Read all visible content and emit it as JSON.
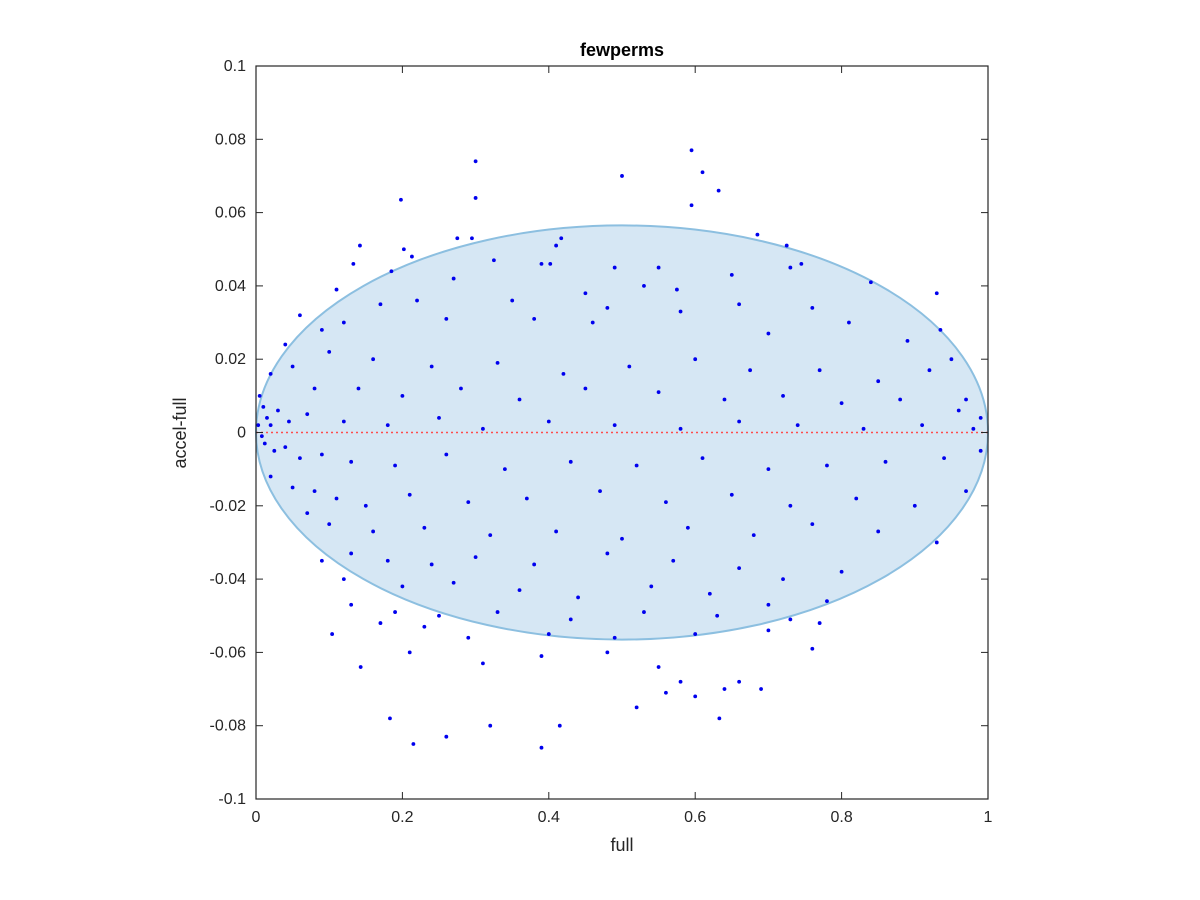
{
  "chart_data": {
    "type": "scatter",
    "title": "fewperms",
    "xlabel": "full",
    "ylabel": "accel-full",
    "xlim": [
      0,
      1
    ],
    "ylim": [
      -0.1,
      0.1
    ],
    "xticks": [
      0,
      0.2,
      0.4,
      0.6,
      0.8,
      1
    ],
    "xtick_labels": [
      "0",
      "0.2",
      "0.4",
      "0.6",
      "0.8",
      "1"
    ],
    "yticks": [
      -0.1,
      -0.08,
      -0.06,
      -0.04,
      -0.02,
      0,
      0.02,
      0.04,
      0.06,
      0.08,
      0.1
    ],
    "ytick_labels": [
      "-0.1",
      "-0.08",
      "-0.06",
      "-0.04",
      "-0.02",
      "0",
      "0.02",
      "0.04",
      "0.06",
      "0.08",
      "0.1"
    ],
    "grid": false,
    "colors": {
      "points": "#0000ee",
      "ellipse_fill": "#d6e7f4",
      "ellipse_stroke": "#8cbfe0",
      "zero_line": "#ff4d4d",
      "axes": "#262626"
    },
    "ellipse": {
      "center": [
        0.5,
        0
      ],
      "semi_axis_x": 0.5,
      "semi_axis_y": 0.0565
    },
    "reference_line": {
      "y": 0,
      "x_range": [
        0,
        1
      ],
      "style": "dotted"
    },
    "series": [
      {
        "values": [
          [
            0.3,
            0.074
          ],
          [
            0.595,
            0.077
          ],
          [
            0.61,
            0.071
          ],
          [
            0.5,
            0.07
          ],
          [
            0.632,
            0.066
          ],
          [
            0.198,
            0.0635
          ],
          [
            0.3,
            0.064
          ],
          [
            0.595,
            0.062
          ],
          [
            0.142,
            0.051
          ],
          [
            0.202,
            0.05
          ],
          [
            0.275,
            0.053
          ],
          [
            0.295,
            0.053
          ],
          [
            0.41,
            0.051
          ],
          [
            0.417,
            0.053
          ],
          [
            0.685,
            0.054
          ],
          [
            0.725,
            0.051
          ],
          [
            0.133,
            0.046
          ],
          [
            0.185,
            0.044
          ],
          [
            0.213,
            0.048
          ],
          [
            0.325,
            0.047
          ],
          [
            0.39,
            0.046
          ],
          [
            0.402,
            0.046
          ],
          [
            0.49,
            0.045
          ],
          [
            0.55,
            0.045
          ],
          [
            0.73,
            0.045
          ],
          [
            0.84,
            0.041
          ],
          [
            0.93,
            0.038
          ],
          [
            0.11,
            0.039
          ],
          [
            0.27,
            0.042
          ],
          [
            0.53,
            0.04
          ],
          [
            0.575,
            0.039
          ],
          [
            0.65,
            0.043
          ],
          [
            0.745,
            0.046
          ],
          [
            0.45,
            0.038
          ],
          [
            0.17,
            0.035
          ],
          [
            0.22,
            0.036
          ],
          [
            0.35,
            0.036
          ],
          [
            0.48,
            0.034
          ],
          [
            0.66,
            0.035
          ],
          [
            0.76,
            0.034
          ],
          [
            0.935,
            0.028
          ],
          [
            0.06,
            0.032
          ],
          [
            0.09,
            0.028
          ],
          [
            0.12,
            0.03
          ],
          [
            0.26,
            0.031
          ],
          [
            0.38,
            0.031
          ],
          [
            0.46,
            0.03
          ],
          [
            0.58,
            0.033
          ],
          [
            0.7,
            0.027
          ],
          [
            0.81,
            0.03
          ],
          [
            0.89,
            0.025
          ],
          [
            0.95,
            0.02
          ],
          [
            0.04,
            0.024
          ],
          [
            0.1,
            0.022
          ],
          [
            0.16,
            0.02
          ],
          [
            0.24,
            0.018
          ],
          [
            0.33,
            0.019
          ],
          [
            0.42,
            0.016
          ],
          [
            0.51,
            0.018
          ],
          [
            0.6,
            0.02
          ],
          [
            0.675,
            0.017
          ],
          [
            0.77,
            0.017
          ],
          [
            0.85,
            0.014
          ],
          [
            0.92,
            0.017
          ],
          [
            0.97,
            0.009
          ],
          [
            0.02,
            0.016
          ],
          [
            0.05,
            0.018
          ],
          [
            0.08,
            0.012
          ],
          [
            0.14,
            0.012
          ],
          [
            0.2,
            0.01
          ],
          [
            0.28,
            0.012
          ],
          [
            0.36,
            0.009
          ],
          [
            0.45,
            0.012
          ],
          [
            0.55,
            0.011
          ],
          [
            0.64,
            0.009
          ],
          [
            0.72,
            0.01
          ],
          [
            0.8,
            0.008
          ],
          [
            0.88,
            0.009
          ],
          [
            0.96,
            0.006
          ],
          [
            0.99,
            0.004
          ],
          [
            0.005,
            0.01
          ],
          [
            0.01,
            0.007
          ],
          [
            0.015,
            0.004
          ],
          [
            0.02,
            0.002
          ],
          [
            0.03,
            0.006
          ],
          [
            0.045,
            0.003
          ],
          [
            0.07,
            0.005
          ],
          [
            0.12,
            0.003
          ],
          [
            0.18,
            0.002
          ],
          [
            0.25,
            0.004
          ],
          [
            0.31,
            0.001
          ],
          [
            0.4,
            0.003
          ],
          [
            0.49,
            0.002
          ],
          [
            0.58,
            0.001
          ],
          [
            0.66,
            0.003
          ],
          [
            0.74,
            0.002
          ],
          [
            0.83,
            0.001
          ],
          [
            0.91,
            0.002
          ],
          [
            0.98,
            0.001
          ],
          [
            0.003,
            0.002
          ],
          [
            0.008,
            -0.001
          ],
          [
            0.012,
            -0.003
          ],
          [
            0.025,
            -0.005
          ],
          [
            0.04,
            -0.004
          ],
          [
            0.06,
            -0.007
          ],
          [
            0.09,
            -0.006
          ],
          [
            0.13,
            -0.008
          ],
          [
            0.19,
            -0.009
          ],
          [
            0.26,
            -0.006
          ],
          [
            0.34,
            -0.01
          ],
          [
            0.43,
            -0.008
          ],
          [
            0.52,
            -0.009
          ],
          [
            0.61,
            -0.007
          ],
          [
            0.7,
            -0.01
          ],
          [
            0.78,
            -0.009
          ],
          [
            0.86,
            -0.008
          ],
          [
            0.94,
            -0.007
          ],
          [
            0.99,
            -0.005
          ],
          [
            0.02,
            -0.012
          ],
          [
            0.05,
            -0.015
          ],
          [
            0.08,
            -0.016
          ],
          [
            0.11,
            -0.018
          ],
          [
            0.15,
            -0.02
          ],
          [
            0.21,
            -0.017
          ],
          [
            0.29,
            -0.019
          ],
          [
            0.37,
            -0.018
          ],
          [
            0.47,
            -0.016
          ],
          [
            0.56,
            -0.019
          ],
          [
            0.65,
            -0.017
          ],
          [
            0.73,
            -0.02
          ],
          [
            0.82,
            -0.018
          ],
          [
            0.9,
            -0.02
          ],
          [
            0.97,
            -0.016
          ],
          [
            0.07,
            -0.022
          ],
          [
            0.1,
            -0.025
          ],
          [
            0.16,
            -0.027
          ],
          [
            0.23,
            -0.026
          ],
          [
            0.32,
            -0.028
          ],
          [
            0.41,
            -0.027
          ],
          [
            0.5,
            -0.029
          ],
          [
            0.59,
            -0.026
          ],
          [
            0.68,
            -0.028
          ],
          [
            0.76,
            -0.025
          ],
          [
            0.85,
            -0.027
          ],
          [
            0.93,
            -0.03
          ],
          [
            0.09,
            -0.035
          ],
          [
            0.13,
            -0.033
          ],
          [
            0.18,
            -0.035
          ],
          [
            0.24,
            -0.036
          ],
          [
            0.3,
            -0.034
          ],
          [
            0.38,
            -0.036
          ],
          [
            0.48,
            -0.033
          ],
          [
            0.57,
            -0.035
          ],
          [
            0.66,
            -0.037
          ],
          [
            0.72,
            -0.04
          ],
          [
            0.8,
            -0.038
          ],
          [
            0.12,
            -0.04
          ],
          [
            0.2,
            -0.042
          ],
          [
            0.27,
            -0.041
          ],
          [
            0.36,
            -0.043
          ],
          [
            0.44,
            -0.045
          ],
          [
            0.54,
            -0.042
          ],
          [
            0.62,
            -0.044
          ],
          [
            0.7,
            -0.047
          ],
          [
            0.78,
            -0.046
          ],
          [
            0.13,
            -0.047
          ],
          [
            0.19,
            -0.049
          ],
          [
            0.25,
            -0.05
          ],
          [
            0.33,
            -0.049
          ],
          [
            0.43,
            -0.051
          ],
          [
            0.53,
            -0.049
          ],
          [
            0.63,
            -0.05
          ],
          [
            0.73,
            -0.051
          ],
          [
            0.104,
            -0.055
          ],
          [
            0.17,
            -0.052
          ],
          [
            0.23,
            -0.053
          ],
          [
            0.29,
            -0.056
          ],
          [
            0.4,
            -0.055
          ],
          [
            0.49,
            -0.056
          ],
          [
            0.6,
            -0.055
          ],
          [
            0.7,
            -0.054
          ],
          [
            0.77,
            -0.052
          ],
          [
            0.143,
            -0.064
          ],
          [
            0.21,
            -0.06
          ],
          [
            0.31,
            -0.063
          ],
          [
            0.39,
            -0.061
          ],
          [
            0.48,
            -0.06
          ],
          [
            0.55,
            -0.064
          ],
          [
            0.58,
            -0.068
          ],
          [
            0.64,
            -0.07
          ],
          [
            0.66,
            -0.068
          ],
          [
            0.76,
            -0.059
          ],
          [
            0.52,
            -0.075
          ],
          [
            0.56,
            -0.071
          ],
          [
            0.6,
            -0.072
          ],
          [
            0.69,
            -0.07
          ],
          [
            0.183,
            -0.078
          ],
          [
            0.633,
            -0.078
          ],
          [
            0.215,
            -0.085
          ],
          [
            0.26,
            -0.083
          ],
          [
            0.32,
            -0.08
          ],
          [
            0.39,
            -0.086
          ],
          [
            0.415,
            -0.08
          ]
        ]
      }
    ]
  }
}
